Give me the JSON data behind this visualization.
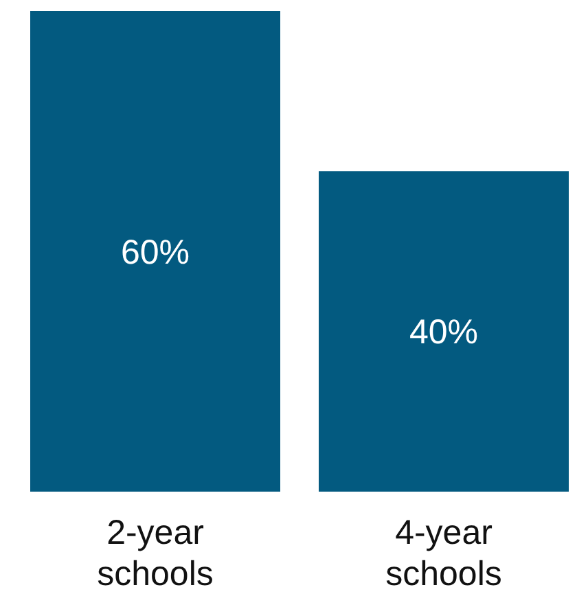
{
  "chart_data": {
    "type": "bar",
    "categories": [
      "2-year schools",
      "4-year schools"
    ],
    "values": [
      60,
      40
    ],
    "color": "#035a80",
    "value_labels": [
      "60%",
      "40%"
    ]
  }
}
